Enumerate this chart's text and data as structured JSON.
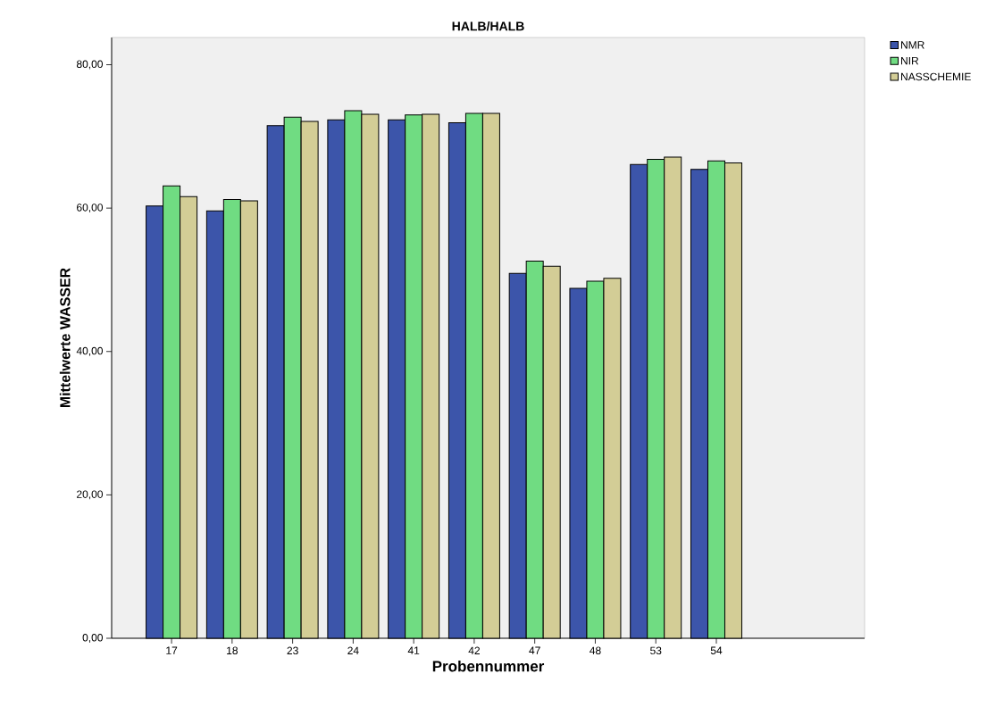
{
  "chart_data": {
    "type": "bar",
    "title": "HALB/HALB",
    "xlabel": "Probennummer",
    "ylabel": "Mittelwerte WASSER",
    "categories": [
      "17",
      "18",
      "23",
      "24",
      "41",
      "42",
      "47",
      "48",
      "53",
      "54"
    ],
    "series": [
      {
        "name": "NMR",
        "color": "#3c55aa",
        "values": [
          60.3,
          59.6,
          71.5,
          72.3,
          72.3,
          71.9,
          50.9,
          48.8,
          66.1,
          65.4
        ]
      },
      {
        "name": "NIR",
        "color": "#70dc82",
        "values": [
          63.1,
          61.2,
          72.7,
          73.6,
          73.0,
          73.2,
          52.6,
          49.8,
          66.8,
          66.6
        ]
      },
      {
        "name": "NASSCHEMIE",
        "color": "#d3cd96",
        "values": [
          61.6,
          61.0,
          72.1,
          73.1,
          73.1,
          73.2,
          51.9,
          50.2,
          67.1,
          66.3
        ]
      }
    ],
    "ylim": [
      0,
      83.8
    ],
    "yticks": [
      {
        "value": 0,
        "label": "0,00"
      },
      {
        "value": 20,
        "label": "20,00"
      },
      {
        "value": 40,
        "label": "40,00"
      },
      {
        "value": 60,
        "label": "60,00"
      },
      {
        "value": 80,
        "label": "80,00"
      }
    ],
    "legend": "top right"
  }
}
